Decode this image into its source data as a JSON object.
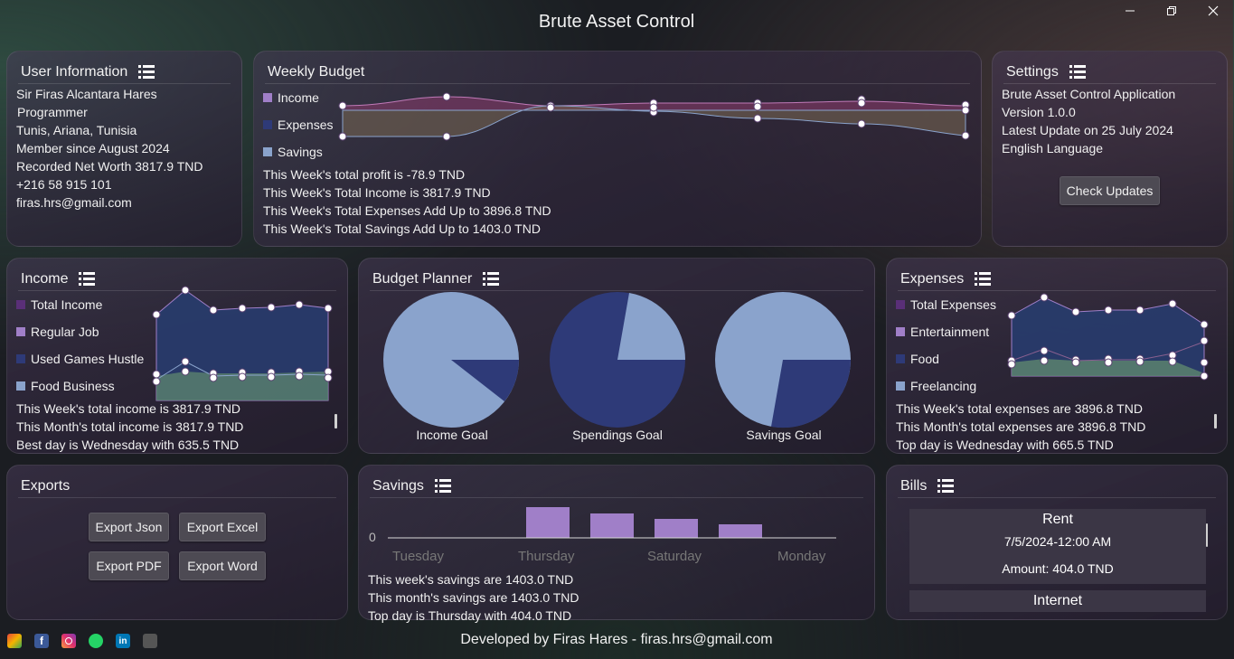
{
  "window": {
    "title": "Brute Asset Control",
    "minimize_icon": "minimize-icon",
    "maximize_icon": "restore-icon",
    "close_icon": "close-icon"
  },
  "user_info": {
    "title": "User Information",
    "name": "Sir Firas Alcantara Hares",
    "job": "Programmer",
    "location": "Tunis, Ariana, Tunisia",
    "member_since": "Member since  August 2024",
    "net_worth": "Recorded Net Worth  3817.9 TND",
    "phone": "+216 58 915 101",
    "email": "firas.hrs@gmail.com"
  },
  "weekly_budget": {
    "title": "Weekly Budget",
    "legend": [
      "Income",
      "Expenses",
      "Savings"
    ],
    "profit": "This Week's total profit is  -78.9 TND",
    "income": "This Week's Total Income is  3817.9 TND",
    "expenses": "This Week's Total Expenses Add Up to  3896.8 TND",
    "savings": "This Week's Total Savings Add Up to  1403.0 TND"
  },
  "settings": {
    "title": "Settings",
    "app": "Brute Asset Control Application",
    "version": "Version 1.0.0",
    "latest_update": "Latest Update on  25 July 2024",
    "language": "English Language",
    "check_updates": "Check Updates"
  },
  "income": {
    "title": "Income",
    "legend": [
      "Total Income",
      "Regular Job",
      "Used Games Hustle",
      "Food Business"
    ],
    "week": "This Week's total income is  3817.9 TND",
    "month": "This Month's total income is  3817.9 TND",
    "best": "Best day is  Wednesday  with  635.5 TND"
  },
  "budget_planner": {
    "title": "Budget Planner",
    "labels": [
      "Income Goal",
      "Spendings Goal",
      "Savings Goal"
    ]
  },
  "expenses": {
    "title": "Expenses",
    "legend": [
      "Total Expenses",
      "Entertainment",
      "Food",
      "Freelancing"
    ],
    "week": "This Week's total expenses are  3896.8 TND",
    "month": "This Month's total expenses are  3896.8 TND",
    "top": "Top day is  Wednesday  with  665.5 TND"
  },
  "exports": {
    "title": "Exports",
    "json": "Export Json",
    "excel": "Export Excel",
    "pdf": "Export PDF",
    "word": "Export Word"
  },
  "savings": {
    "title": "Savings",
    "zero": "0",
    "days": [
      "Tuesday",
      "Thursday",
      "Saturday",
      "Monday"
    ],
    "week": "This week's savings are  1403.0 TND",
    "month": "This month's savings are  1403.0 TND",
    "top": "Top day is  Thursday  with  404.0 TND"
  },
  "bills": {
    "title": "Bills",
    "items": [
      {
        "name": "Rent",
        "date": "7/5/2024-12:00 AM",
        "amount": "Amount:  404.0 TND"
      },
      {
        "name": "Internet"
      }
    ]
  },
  "footer": {
    "text": "Developed by Firas Hares - firas.hrs@gmail.com",
    "icons": [
      "gmail-icon",
      "facebook-icon",
      "instagram-icon",
      "whatsapp-icon",
      "linkedin-icon",
      "github-icon"
    ]
  },
  "colors": {
    "purple": "#a07fc8",
    "dark_blue": "#2e3a78",
    "light_blue": "#8aa3cc",
    "dark_purple": "#5a2f78"
  }
}
